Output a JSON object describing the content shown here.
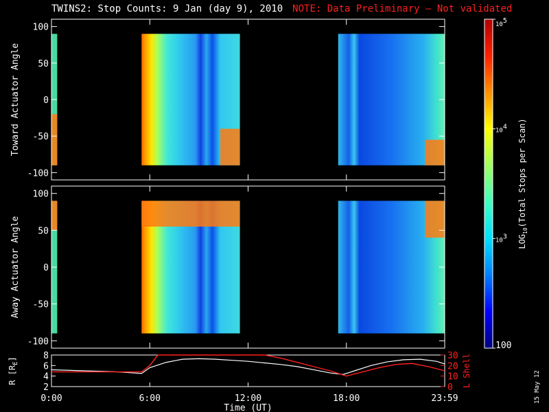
{
  "title": {
    "main": "TWINS2: Stop Counts:  9 Jan (day   9), 2010",
    "note": "NOTE: Data Preliminary – Not validated"
  },
  "date_stamp": "15 May 12",
  "colors": {
    "background": "#000000",
    "axes": "#ffffff",
    "note": "#ff2020",
    "r_line": "#ffffff",
    "lshell_line": "#ff2020"
  },
  "chart_data": [
    {
      "type": "heatmap",
      "ylabel": "Toward Actuator Angle",
      "ylim": [
        -110,
        110
      ],
      "yticks": [
        -100,
        -50,
        0,
        50,
        100
      ],
      "data_y_range": [
        -90,
        90
      ],
      "xlim": [
        0,
        24
      ],
      "data_intervals_hours": [
        [
          0,
          0.35
        ],
        [
          5.5,
          11.5
        ],
        [
          17.5,
          24
        ]
      ],
      "note": "angle vs time spectrogram of stop counts"
    },
    {
      "type": "heatmap",
      "ylabel": "Away Actuator Angle",
      "ylim": [
        -110,
        110
      ],
      "yticks": [
        -100,
        -50,
        0,
        50,
        100
      ],
      "data_y_range": [
        -90,
        90
      ],
      "xlim": [
        0,
        24
      ],
      "data_intervals_hours": [
        [
          0,
          0.35
        ],
        [
          5.5,
          11.5
        ],
        [
          17.5,
          24
        ]
      ]
    },
    {
      "type": "line",
      "ylabel_left": "R [R",
      "ylabel_left_sub": "E",
      "ylabel_left_end": "]",
      "ylabel_right": "L Shell",
      "ylim_left": [
        2,
        8
      ],
      "yticks_left": [
        2,
        4,
        6,
        8
      ],
      "ylim_right": [
        0,
        30
      ],
      "yticks_right": [
        0,
        10,
        20,
        30
      ],
      "xlim": [
        0,
        24
      ],
      "xlabel": "Time (UT)",
      "xtick_labels": [
        "0:00",
        "6:00",
        "12:00",
        "18:00",
        "23:59"
      ],
      "xtick_hours": [
        0,
        6,
        12,
        18,
        24
      ],
      "series": [
        {
          "name": "R",
          "x": [
            0,
            1,
            2,
            3,
            4,
            5,
            5.5,
            6,
            7,
            8,
            9,
            10,
            11,
            12,
            13,
            14,
            15,
            16,
            17,
            17.8,
            18.5,
            19.5,
            20.5,
            21.5,
            22.5,
            23.5,
            24
          ],
          "y": [
            5.2,
            5.1,
            5.0,
            4.9,
            4.8,
            4.6,
            4.5,
            5.6,
            6.6,
            7.2,
            7.3,
            7.2,
            7.0,
            6.8,
            6.5,
            6.2,
            5.8,
            5.2,
            4.6,
            4.3,
            5.0,
            6.0,
            6.7,
            7.1,
            7.2,
            6.8,
            6.3
          ]
        },
        {
          "name": "L Shell",
          "x": [
            0,
            1,
            2,
            3,
            4,
            5,
            5.5,
            6,
            6.5,
            13,
            14,
            15,
            16,
            17,
            18,
            19,
            20,
            21,
            22,
            23,
            24
          ],
          "y": [
            14,
            14,
            14,
            14,
            14,
            14,
            14,
            20,
            30,
            30,
            27,
            23,
            19,
            15,
            10,
            14,
            18,
            21,
            22,
            19,
            15
          ]
        }
      ]
    }
  ],
  "colorbar": {
    "label_parts": [
      "LOG",
      "10",
      "(Total Stops per Scan)"
    ],
    "tick_labels": [
      {
        "base": "10",
        "exp": "5",
        "value": 100000
      },
      {
        "base": "10",
        "exp": "4",
        "value": 10000
      },
      {
        "base": "10",
        "exp": "3",
        "value": 1000
      },
      {
        "base": "100",
        "exp": "",
        "value": 100
      }
    ],
    "range": [
      100,
      100000
    ],
    "scale": "log",
    "colormap": [
      "#00007f",
      "#0000ff",
      "#0080ff",
      "#00e0ff",
      "#40ffc0",
      "#a0ff60",
      "#ffff00",
      "#ff9000",
      "#ff2000",
      "#b00000"
    ]
  }
}
